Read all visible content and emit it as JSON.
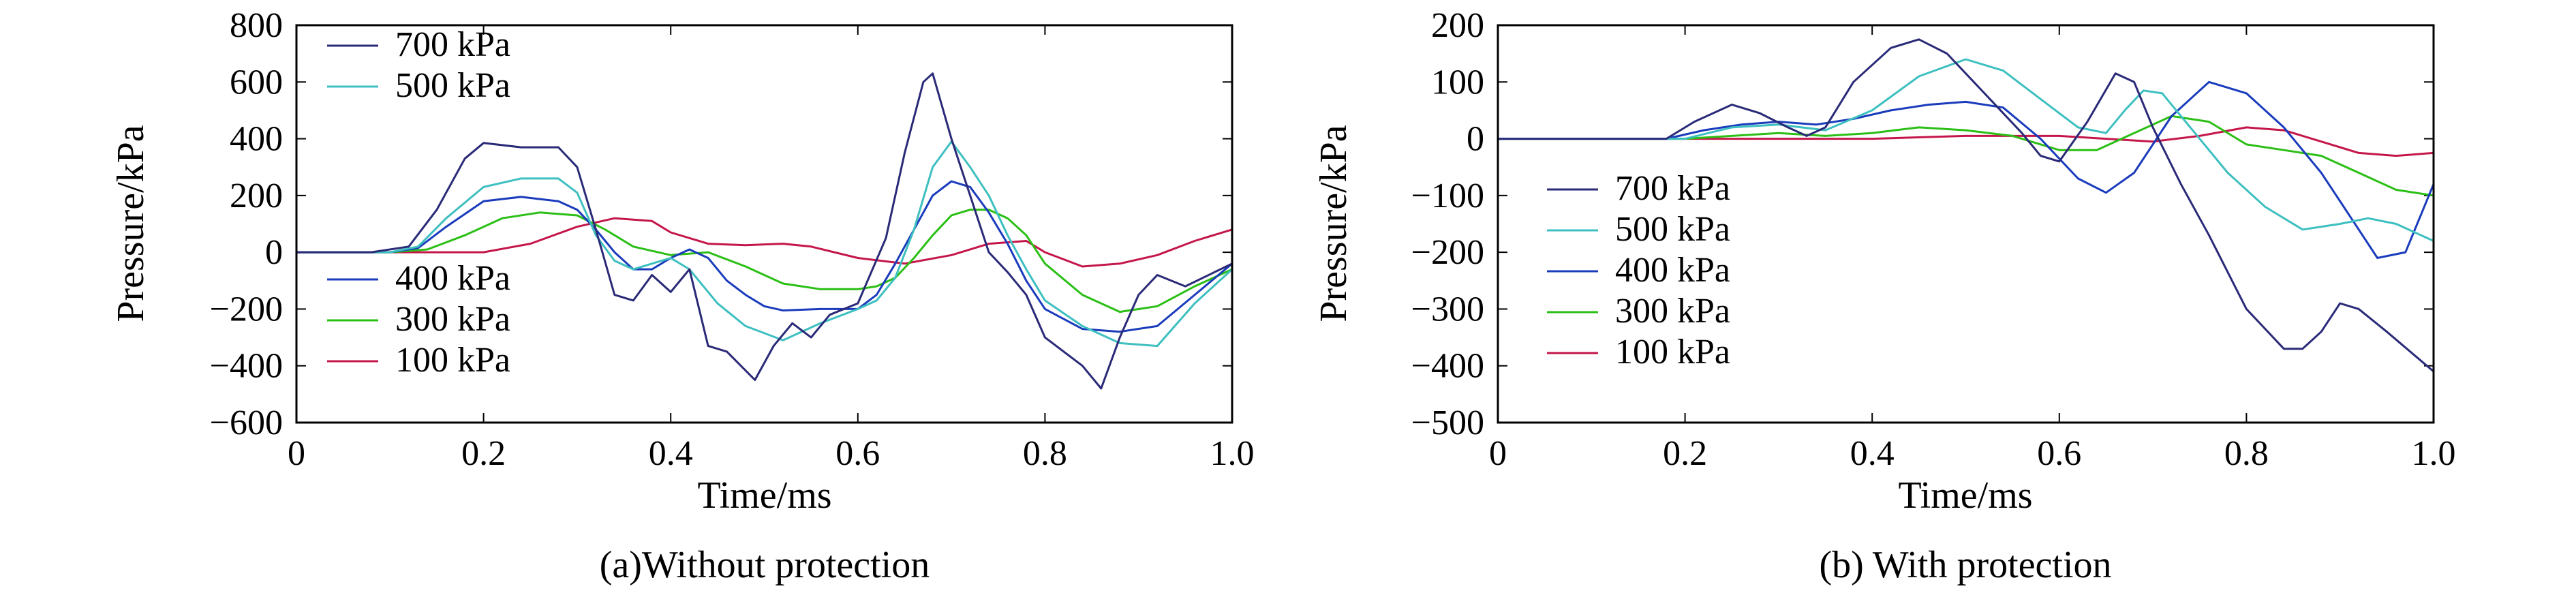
{
  "chart_data": [
    {
      "type": "line",
      "caption": "(a)Without protection",
      "xlabel": "Time/ms",
      "ylabel": "Pressure/kPa",
      "xlim": [
        0,
        1.0
      ],
      "ylim": [
        -600,
        800
      ],
      "xticks": [
        0,
        0.2,
        0.4,
        0.6,
        0.8,
        1.0
      ],
      "xtick_labels": [
        "0",
        "0.2",
        "0.4",
        "0.6",
        "0.8",
        "1.0"
      ],
      "yticks": [
        -600,
        -400,
        -200,
        0,
        200,
        400,
        600,
        800
      ],
      "ytick_labels": [
        "−600",
        "−400",
        "−200",
        "0",
        "200",
        "400",
        "600",
        "800"
      ],
      "legend_groups": [
        {
          "placement": "top-left",
          "entries": [
            0,
            1
          ]
        },
        {
          "placement": "bottom-left",
          "entries": [
            2,
            3,
            4
          ]
        }
      ],
      "series": [
        {
          "name": "700 kPa",
          "color": "#2a2a78",
          "x": [
            0,
            0.08,
            0.12,
            0.15,
            0.18,
            0.2,
            0.24,
            0.28,
            0.3,
            0.32,
            0.34,
            0.36,
            0.38,
            0.4,
            0.42,
            0.44,
            0.46,
            0.49,
            0.51,
            0.53,
            0.55,
            0.57,
            0.6,
            0.63,
            0.65,
            0.67,
            0.68,
            0.7,
            0.72,
            0.74,
            0.76,
            0.78,
            0.8,
            0.82,
            0.84,
            0.86,
            0.88,
            0.9,
            0.92,
            0.95,
            1.0
          ],
          "y": [
            0,
            0,
            20,
            150,
            330,
            385,
            370,
            370,
            300,
            80,
            -150,
            -170,
            -80,
            -140,
            -60,
            -330,
            -350,
            -450,
            -330,
            -250,
            -300,
            -220,
            -180,
            50,
            350,
            600,
            630,
            400,
            200,
            0,
            -70,
            -150,
            -300,
            -350,
            -400,
            -480,
            -300,
            -150,
            -80,
            -120,
            -40
          ]
        },
        {
          "name": "500 kPa",
          "color": "#3ebfc0",
          "x": [
            0,
            0.1,
            0.13,
            0.16,
            0.2,
            0.24,
            0.28,
            0.3,
            0.32,
            0.34,
            0.36,
            0.38,
            0.4,
            0.42,
            0.45,
            0.48,
            0.52,
            0.56,
            0.6,
            0.62,
            0.64,
            0.66,
            0.68,
            0.7,
            0.72,
            0.74,
            0.76,
            0.78,
            0.8,
            0.84,
            0.88,
            0.92,
            0.96,
            1.0
          ],
          "y": [
            0,
            0,
            20,
            120,
            230,
            260,
            260,
            210,
            60,
            -30,
            -60,
            -40,
            -20,
            -60,
            -180,
            -260,
            -310,
            -250,
            -200,
            -170,
            -90,
            80,
            300,
            390,
            300,
            200,
            60,
            -60,
            -170,
            -260,
            -320,
            -330,
            -180,
            -60
          ]
        },
        {
          "name": "400 kPa",
          "color": "#1a3cbc",
          "x": [
            0,
            0.1,
            0.13,
            0.16,
            0.2,
            0.24,
            0.28,
            0.3,
            0.32,
            0.34,
            0.36,
            0.38,
            0.4,
            0.42,
            0.44,
            0.46,
            0.48,
            0.5,
            0.52,
            0.56,
            0.6,
            0.62,
            0.64,
            0.66,
            0.68,
            0.7,
            0.72,
            0.74,
            0.76,
            0.78,
            0.8,
            0.84,
            0.88,
            0.92,
            0.96,
            1.0
          ],
          "y": [
            0,
            0,
            15,
            90,
            180,
            195,
            180,
            150,
            80,
            0,
            -60,
            -60,
            -20,
            10,
            -20,
            -100,
            -150,
            -190,
            -205,
            -200,
            -200,
            -150,
            -40,
            80,
            200,
            250,
            230,
            140,
            30,
            -100,
            -200,
            -270,
            -280,
            -260,
            -150,
            -40
          ]
        },
        {
          "name": "300 kPa",
          "color": "#2bbf16",
          "x": [
            0,
            0.1,
            0.14,
            0.18,
            0.22,
            0.26,
            0.3,
            0.33,
            0.36,
            0.4,
            0.44,
            0.48,
            0.52,
            0.56,
            0.6,
            0.62,
            0.64,
            0.66,
            0.68,
            0.7,
            0.72,
            0.74,
            0.76,
            0.78,
            0.8,
            0.84,
            0.88,
            0.92,
            0.96,
            1.0
          ],
          "y": [
            0,
            0,
            10,
            60,
            120,
            140,
            130,
            80,
            20,
            -10,
            0,
            -50,
            -110,
            -130,
            -130,
            -120,
            -90,
            -20,
            60,
            130,
            150,
            150,
            120,
            60,
            -40,
            -150,
            -210,
            -190,
            -120,
            -60
          ]
        },
        {
          "name": "100 kPa",
          "color": "#c4164a",
          "x": [
            0,
            0.2,
            0.25,
            0.3,
            0.34,
            0.38,
            0.4,
            0.44,
            0.48,
            0.52,
            0.55,
            0.6,
            0.65,
            0.7,
            0.74,
            0.78,
            0.8,
            0.84,
            0.88,
            0.92,
            0.96,
            1.0
          ],
          "y": [
            0,
            0,
            30,
            90,
            120,
            110,
            70,
            30,
            25,
            30,
            20,
            -20,
            -40,
            -10,
            30,
            40,
            0,
            -50,
            -40,
            -10,
            40,
            80
          ]
        }
      ]
    },
    {
      "type": "line",
      "caption": "(b) With protection",
      "xlabel": "Time/ms",
      "ylabel": "Pressure/kPa",
      "xlim": [
        0,
        1.0
      ],
      "ylim": [
        -500,
        200
      ],
      "xticks": [
        0,
        0.2,
        0.4,
        0.6,
        0.8,
        1.0
      ],
      "xtick_labels": [
        "0",
        "0.2",
        "0.4",
        "0.6",
        "0.8",
        "1.0"
      ],
      "yticks": [
        -500,
        -400,
        -300,
        -200,
        -100,
        0,
        100,
        200
      ],
      "ytick_labels": [
        "−500",
        "−400",
        "−300",
        "−200",
        "−100",
        "0",
        "100",
        "200"
      ],
      "legend_groups": [
        {
          "placement": "left",
          "entries": [
            0,
            1,
            2,
            3,
            4
          ]
        }
      ],
      "series": [
        {
          "name": "700 kPa",
          "color": "#2a2a78",
          "x": [
            0,
            0.18,
            0.21,
            0.25,
            0.28,
            0.31,
            0.33,
            0.35,
            0.38,
            0.42,
            0.45,
            0.48,
            0.52,
            0.56,
            0.58,
            0.6,
            0.63,
            0.66,
            0.68,
            0.7,
            0.73,
            0.76,
            0.8,
            0.84,
            0.86,
            0.88,
            0.9,
            0.92,
            0.95,
            1.0
          ],
          "y": [
            0,
            0,
            30,
            60,
            45,
            20,
            5,
            20,
            100,
            160,
            175,
            150,
            80,
            10,
            -30,
            -40,
            30,
            115,
            100,
            20,
            -80,
            -170,
            -300,
            -370,
            -370,
            -340,
            -290,
            -300,
            -340,
            -410
          ]
        },
        {
          "name": "500 kPa",
          "color": "#3ebfc0",
          "x": [
            0,
            0.2,
            0.25,
            0.3,
            0.35,
            0.4,
            0.45,
            0.5,
            0.54,
            0.58,
            0.62,
            0.65,
            0.67,
            0.69,
            0.71,
            0.74,
            0.78,
            0.82,
            0.86,
            0.9,
            0.93,
            0.96,
            1.0
          ],
          "y": [
            0,
            0,
            20,
            25,
            15,
            50,
            110,
            140,
            120,
            70,
            20,
            10,
            50,
            85,
            80,
            20,
            -60,
            -120,
            -160,
            -150,
            -140,
            -150,
            -180
          ]
        },
        {
          "name": "400 kPa",
          "color": "#1a3cbc",
          "x": [
            0,
            0.18,
            0.22,
            0.26,
            0.3,
            0.34,
            0.38,
            0.42,
            0.46,
            0.5,
            0.54,
            0.58,
            0.62,
            0.65,
            0.68,
            0.72,
            0.76,
            0.8,
            0.84,
            0.88,
            0.92,
            0.94,
            0.97,
            1.0
          ],
          "y": [
            0,
            0,
            15,
            25,
            30,
            25,
            35,
            50,
            60,
            65,
            55,
            0,
            -70,
            -95,
            -60,
            40,
            100,
            80,
            20,
            -60,
            -160,
            -210,
            -200,
            -80
          ]
        },
        {
          "name": "300 kPa",
          "color": "#2bbf16",
          "x": [
            0,
            0.2,
            0.25,
            0.3,
            0.35,
            0.4,
            0.45,
            0.5,
            0.55,
            0.6,
            0.64,
            0.68,
            0.72,
            0.76,
            0.8,
            0.84,
            0.88,
            0.92,
            0.96,
            1.0
          ],
          "y": [
            0,
            0,
            5,
            10,
            5,
            10,
            20,
            15,
            5,
            -20,
            -20,
            10,
            40,
            30,
            -10,
            -20,
            -30,
            -60,
            -90,
            -100
          ]
        },
        {
          "name": "100 kPa",
          "color": "#c4164a",
          "x": [
            0,
            0.3,
            0.4,
            0.5,
            0.6,
            0.65,
            0.7,
            0.75,
            0.8,
            0.84,
            0.88,
            0.92,
            0.96,
            1.0
          ],
          "y": [
            0,
            0,
            0,
            5,
            5,
            0,
            -5,
            5,
            20,
            15,
            -5,
            -25,
            -30,
            -25
          ]
        }
      ]
    }
  ]
}
